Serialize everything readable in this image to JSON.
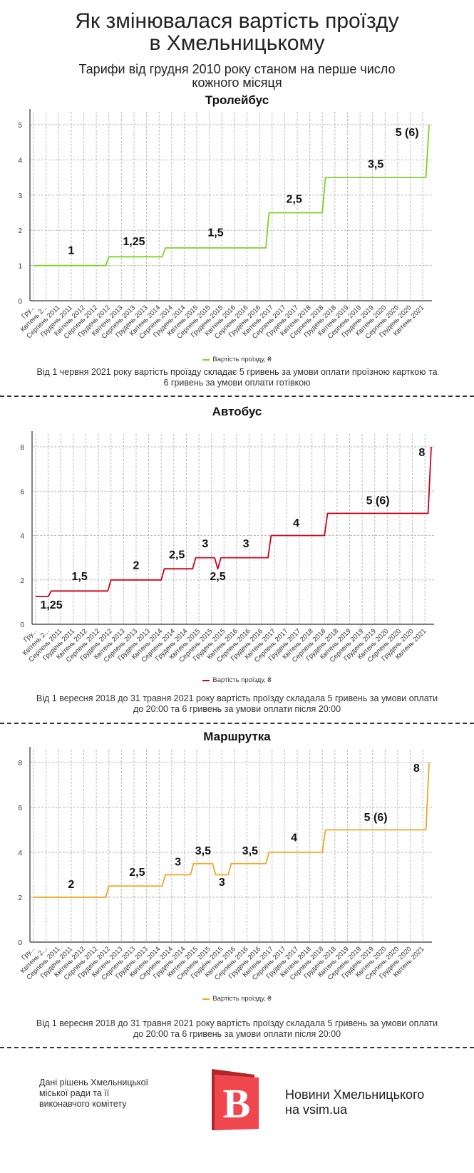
{
  "header": {
    "title_line1": "Як змінювалася вартість проїзду",
    "title_line2": "в Хмельницькому",
    "subtitle_line1": "Тарифи від грудня 2010 року станом на перше число",
    "subtitle_line2": "кожного місяця"
  },
  "chart_data": [
    {
      "type": "line",
      "title": "Тролейбус",
      "color": "#7ed321",
      "x_start": "2010-12",
      "x_end": "2021-06",
      "x_tick_labels": [
        "Гру...",
        "Квітень 2...",
        "Серпень 2011",
        "Грудень 2011",
        "Квітень 2012",
        "Серпень 2012",
        "Грудень 2012",
        "Квітень 2013",
        "Серпень 2013",
        "Грудень 2013",
        "Квітень 2014",
        "Серпень 2014",
        "Грудень 2014",
        "Квітень 2015",
        "Серпень 2015",
        "Грудень 2015",
        "Квітень 2016",
        "Серпень 2016",
        "Грудень 2016",
        "Квітень 2017",
        "Серпень 2017",
        "Грудень 2017",
        "Квітень 2018",
        "Серпень 2018",
        "Грудень 2018",
        "Квітень 2019",
        "Серпень 2019",
        "Грудень 2019",
        "Квітень 2020",
        "Серпень 2020",
        "Грудень 2020",
        "Квітень 2021"
      ],
      "y_ticks": [
        "0",
        "1",
        "2",
        "3",
        "4",
        "5"
      ],
      "ylim": [
        0,
        5
      ],
      "grid": true,
      "legend": "bottom",
      "series": [
        {
          "name": "Вартість проїзду, ₴",
          "steps": [
            {
              "from": "2010-12",
              "value": 1
            },
            {
              "from": "2012-12",
              "value": 1.25
            },
            {
              "from": "2014-06",
              "value": 1.5
            },
            {
              "from": "2017-03",
              "value": 2.5
            },
            {
              "from": "2018-09",
              "value": 3.5
            },
            {
              "from": "2021-06",
              "value": 5
            }
          ]
        }
      ],
      "annotations": [
        {
          "text": "1",
          "x": "2011-12",
          "y": 1.45
        },
        {
          "text": "1,25",
          "x": "2013-08",
          "y": 1.7
        },
        {
          "text": "1,5",
          "x": "2015-10",
          "y": 1.95
        },
        {
          "text": "2,5",
          "x": "2017-11",
          "y": 2.9
        },
        {
          "text": "3,5",
          "x": "2020-01",
          "y": 3.9
        },
        {
          "text": "5 (6)",
          "x": "2020-11",
          "y": 4.8
        }
      ],
      "note_line1": "Від 1 червня 2021 року вартість проїзду складає 5 гривень за умови оплати проїзною карткою та",
      "note_line2": "6 гривень за умови оплати готівкою"
    },
    {
      "type": "line",
      "title": "Автобус",
      "color": "#d0021b",
      "x_start": "2010-12",
      "x_end": "2021-06",
      "x_tick_labels": [
        "Гру...",
        "Квітень 2...",
        "Серпень 2011",
        "Грудень 2011",
        "Квітень 2012",
        "Серпень 2012",
        "Грудень 2012",
        "Квітень 2013",
        "Серпень 2013",
        "Грудень 2013",
        "Квітень 2014",
        "Серпень 2014",
        "Грудень 2014",
        "Квітень 2015",
        "Серпень 2015",
        "Грудень 2015",
        "Квітень 2016",
        "Серпень 2016",
        "Грудень 2016",
        "Квітень 2017",
        "Серпень 2017",
        "Грудень 2017",
        "Квітень 2018",
        "Серпень 2018",
        "Грудень 2018",
        "Квітень 2019",
        "Серпень 2019",
        "Грудень 2019",
        "Квітень 2020",
        "Серпень 2020",
        "Грудень 2020",
        "Квітень 2021"
      ],
      "y_ticks": [
        "0",
        "2",
        "4",
        "6",
        "8"
      ],
      "ylim": [
        0,
        8
      ],
      "grid": true,
      "legend": "bottom",
      "series": [
        {
          "name": "Вартість проїзду, ₴",
          "steps": [
            {
              "from": "2010-12",
              "value": 1.25
            },
            {
              "from": "2011-05",
              "value": 1.5
            },
            {
              "from": "2012-12",
              "value": 2
            },
            {
              "from": "2014-05",
              "value": 2.5
            },
            {
              "from": "2015-03",
              "value": 3
            },
            {
              "from": "2015-10",
              "value": 2.5
            },
            {
              "from": "2015-11",
              "value": 3
            },
            {
              "from": "2017-03",
              "value": 4
            },
            {
              "from": "2018-09",
              "value": 5
            },
            {
              "from": "2021-06",
              "value": 8
            }
          ]
        }
      ],
      "annotations": [
        {
          "text": "1,25",
          "x": "2011-05",
          "y": 0.9
        },
        {
          "text": "1,5",
          "x": "2012-02",
          "y": 2.18
        },
        {
          "text": "2",
          "x": "2013-08",
          "y": 2.68
        },
        {
          "text": "2,5",
          "x": "2014-09",
          "y": 3.17
        },
        {
          "text": "3",
          "x": "2015-06",
          "y": 3.67
        },
        {
          "text": "2,5",
          "x": "2015-10",
          "y": 2.18
        },
        {
          "text": "3",
          "x": "2016-07",
          "y": 3.67
        },
        {
          "text": "4",
          "x": "2017-11",
          "y": 4.6
        },
        {
          "text": "5 (6)",
          "x": "2020-01",
          "y": 5.6
        },
        {
          "text": "8",
          "x": "2021-03",
          "y": 7.78
        }
      ],
      "note_line1": "Від 1 вересня 2018 до 31 травня 2021 року вартість проїзду складала 5 гривень за умови оплати",
      "note_line2": "до 20:00 та 6 гривень за умови оплати після 20:00"
    },
    {
      "type": "line",
      "title": "Маршрутка",
      "color": "#f5a623",
      "x_start": "2010-12",
      "x_end": "2021-06",
      "x_tick_labels": [
        "Гру...",
        "Квітень 2...",
        "Серпень 2011",
        "Грудень 2011",
        "Квітень 2012",
        "Серпень 2012",
        "Грудень 2012",
        "Квітень 2013",
        "Серпень 2013",
        "Грудень 2013",
        "Квітень 2014",
        "Серпень 2014",
        "Грудень 2014",
        "Квітень 2015",
        "Серпень 2015",
        "Грудень 2015",
        "Квітень 2016",
        "Серпень 2016",
        "Грудень 2016",
        "Квітень 2017",
        "Серпень 2017",
        "Грудень 2017",
        "Квітень 2018",
        "Серпень 2018",
        "Грудень 2018",
        "Квітень 2019",
        "Серпень 2019",
        "Грудень 2019",
        "Квітень 2020",
        "Серпень 2020",
        "Грудень 2020",
        "Квітень 2021"
      ],
      "y_ticks": [
        "0",
        "2",
        "4",
        "6",
        "8"
      ],
      "ylim": [
        0,
        8
      ],
      "grid": true,
      "legend": "bottom",
      "series": [
        {
          "name": "Вартість проїзду, ₴",
          "steps": [
            {
              "from": "2010-12",
              "value": 2
            },
            {
              "from": "2012-12",
              "value": 2.5
            },
            {
              "from": "2014-06",
              "value": 3
            },
            {
              "from": "2015-03",
              "value": 3.5
            },
            {
              "from": "2015-10",
              "value": 3
            },
            {
              "from": "2016-03",
              "value": 3.5
            },
            {
              "from": "2017-03",
              "value": 4
            },
            {
              "from": "2018-09",
              "value": 5
            },
            {
              "from": "2021-06",
              "value": 8
            }
          ]
        }
      ],
      "annotations": [
        {
          "text": "2",
          "x": "2011-12",
          "y": 2.6
        },
        {
          "text": "2,5",
          "x": "2013-09",
          "y": 3.15
        },
        {
          "text": "3",
          "x": "2014-10",
          "y": 3.6
        },
        {
          "text": "3,5",
          "x": "2015-06",
          "y": 4.1
        },
        {
          "text": "3",
          "x": "2015-12",
          "y": 2.7
        },
        {
          "text": "3,5",
          "x": "2016-09",
          "y": 4.1
        },
        {
          "text": "4",
          "x": "2017-11",
          "y": 4.68
        },
        {
          "text": "5 (6)",
          "x": "2020-01",
          "y": 5.58
        },
        {
          "text": "8",
          "x": "2021-02",
          "y": 7.78
        }
      ],
      "note_line1": "Від 1 вересня 2018 до 31 травня 2021 року вартість проїзду складала 5 гривень за умови оплати",
      "note_line2": "до 20:00 та 6 гривень за умови оплати після 20:00"
    }
  ],
  "footer": {
    "source_line1": "Дані рішень Хмельницької",
    "source_line2": "міської ради та її",
    "source_line3": "виконавчого комітету",
    "brand_line1": "Новини Хмельницького",
    "brand_line2": "на vsim.ua",
    "logo_letter": "B",
    "logo_color": "#f0474e"
  }
}
